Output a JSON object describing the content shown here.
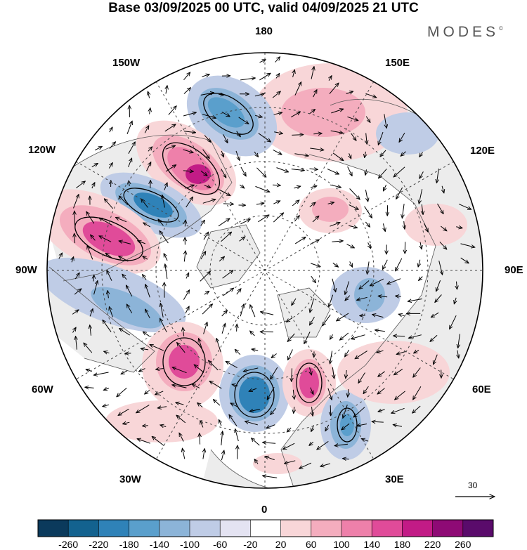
{
  "title": "Base 03/09/2025 00 UTC, valid 04/09/2025 21 UTC",
  "brand": "MODES",
  "brand_mark": "©",
  "lon_labels": {
    "top": "180",
    "bottom": "0",
    "left": "90W",
    "right": "90E",
    "upper_left": "150W",
    "upper_right": "150E",
    "mid_left_upper": "120W",
    "mid_right_upper": "120E",
    "lower_left": "60W",
    "lower_right": "60E",
    "bottom_left": "30W",
    "bottom_right": "30E"
  },
  "vector_scale_label": "30",
  "colorbar": {
    "ticks": [
      "-260",
      "-220",
      "-180",
      "-140",
      "-100",
      "-60",
      "-20",
      "20",
      "60",
      "100",
      "140",
      "180",
      "220",
      "260"
    ],
    "colors": [
      "#0b3a5c",
      "#13628f",
      "#2f82b8",
      "#5a9fcc",
      "#8cb4d8",
      "#bfcce6",
      "#e4e3f2",
      "#ffffff",
      "#f8d6d8",
      "#f4adbe",
      "#ee80aa",
      "#e04b99",
      "#c21b86",
      "#8e0a75",
      "#5a0b6b"
    ]
  },
  "colors": {
    "land": "#ececec",
    "coast": "#555555",
    "grid": "#444444"
  }
}
